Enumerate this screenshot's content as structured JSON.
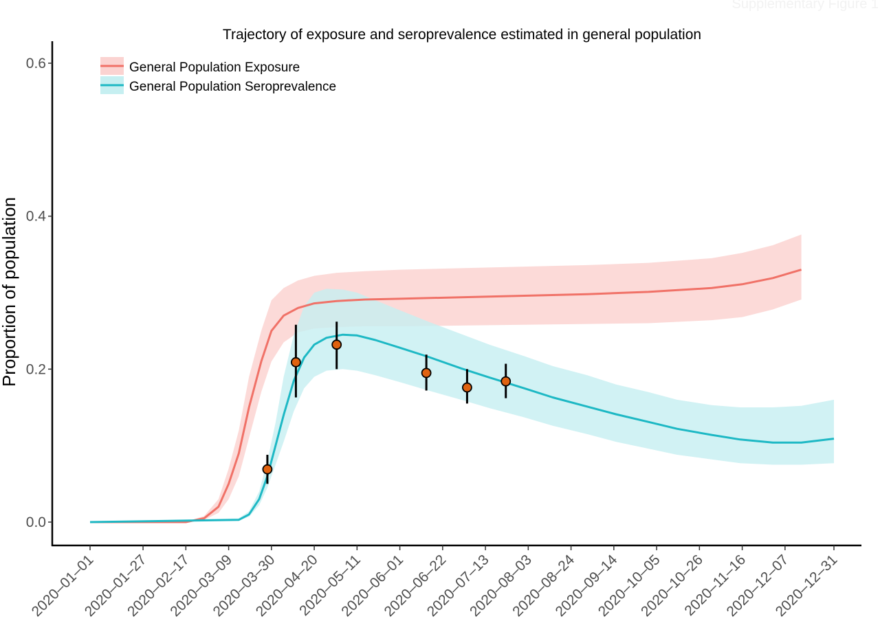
{
  "corner_label": "Supplementary Figure 1",
  "chart_data": {
    "type": "line",
    "title": "Trajectory of exposure and seroprevalence estimated in general population",
    "xlabel": "",
    "ylabel": "Proportion of population",
    "x_range": [
      "2020-01-01",
      "2020-12-31"
    ],
    "ylim": [
      -0.03,
      0.62
    ],
    "y_ticks": [
      0.0,
      0.2,
      0.4,
      0.6
    ],
    "y_tick_labels": [
      "0.0",
      "0.2",
      "0.4",
      "0.6"
    ],
    "x_ticks": [
      "2020-01-01",
      "2020-01-27",
      "2020-02-17",
      "2020-03-09",
      "2020-03-30",
      "2020-04-20",
      "2020-05-11",
      "2020-06-01",
      "2020-06-22",
      "2020-07-13",
      "2020-08-03",
      "2020-08-24",
      "2020-09-14",
      "2020-10-05",
      "2020-10-26",
      "2020-11-16",
      "2020-12-07",
      "2020-12-31"
    ],
    "x_tick_labels": [
      "2020–01–01",
      "2020–01–27",
      "2020–02–17",
      "2020–03–09",
      "2020–03–30",
      "2020–04–20",
      "2020–05–11",
      "2020–06–01",
      "2020–06–22",
      "2020–07–13",
      "2020–08–03",
      "2020–08–24",
      "2020–09–14",
      "2020–10–05",
      "2020–10–26",
      "2020–11–16",
      "2020–12–07",
      "2020–12–31"
    ],
    "grid": false,
    "legend_position": "top-left",
    "series": [
      {
        "name": "General Population Exposure",
        "color": "#f07167",
        "band_color": "#fbd3d1",
        "x": [
          "2020-01-01",
          "2020-02-17",
          "2020-02-26",
          "2020-03-04",
          "2020-03-09",
          "2020-03-14",
          "2020-03-19",
          "2020-03-25",
          "2020-03-30",
          "2020-04-05",
          "2020-04-12",
          "2020-04-20",
          "2020-05-01",
          "2020-05-15",
          "2020-06-01",
          "2020-07-01",
          "2020-08-01",
          "2020-09-01",
          "2020-10-01",
          "2020-11-01",
          "2020-11-16",
          "2020-12-01",
          "2020-12-15"
        ],
        "y": [
          0.0,
          0.0,
          0.005,
          0.02,
          0.05,
          0.09,
          0.15,
          0.21,
          0.25,
          0.27,
          0.28,
          0.286,
          0.289,
          0.291,
          0.292,
          0.294,
          0.296,
          0.298,
          0.301,
          0.306,
          0.311,
          0.319,
          0.33
        ],
        "lower": [
          0.0,
          0.0,
          0.003,
          0.012,
          0.03,
          0.06,
          0.11,
          0.17,
          0.21,
          0.235,
          0.248,
          0.253,
          0.255,
          0.256,
          0.256,
          0.257,
          0.258,
          0.259,
          0.26,
          0.264,
          0.268,
          0.278,
          0.291
        ],
        "upper": [
          0.0,
          0.0,
          0.008,
          0.03,
          0.07,
          0.12,
          0.19,
          0.25,
          0.29,
          0.306,
          0.316,
          0.322,
          0.326,
          0.328,
          0.33,
          0.332,
          0.334,
          0.336,
          0.339,
          0.345,
          0.352,
          0.362,
          0.376
        ]
      },
      {
        "name": "General Population Seroprevalence",
        "color": "#1db8c4",
        "band_color": "#c6eff1",
        "x": [
          "2020-01-01",
          "2020-03-14",
          "2020-03-19",
          "2020-03-24",
          "2020-03-28",
          "2020-04-01",
          "2020-04-05",
          "2020-04-10",
          "2020-04-15",
          "2020-04-20",
          "2020-04-26",
          "2020-05-04",
          "2020-05-11",
          "2020-05-20",
          "2020-06-01",
          "2020-06-15",
          "2020-07-01",
          "2020-07-15",
          "2020-08-01",
          "2020-08-15",
          "2020-09-01",
          "2020-09-15",
          "2020-10-01",
          "2020-10-15",
          "2020-11-01",
          "2020-11-15",
          "2020-12-01",
          "2020-12-15",
          "2020-12-31"
        ],
        "y": [
          0.0,
          0.003,
          0.01,
          0.03,
          0.06,
          0.1,
          0.14,
          0.185,
          0.215,
          0.232,
          0.241,
          0.245,
          0.244,
          0.238,
          0.228,
          0.216,
          0.201,
          0.189,
          0.175,
          0.163,
          0.151,
          0.141,
          0.131,
          0.122,
          0.114,
          0.108,
          0.104,
          0.104,
          0.109
        ],
        "lower": [
          0.0,
          0.002,
          0.007,
          0.022,
          0.045,
          0.075,
          0.105,
          0.145,
          0.175,
          0.19,
          0.198,
          0.2,
          0.198,
          0.192,
          0.183,
          0.172,
          0.16,
          0.149,
          0.137,
          0.126,
          0.115,
          0.105,
          0.096,
          0.088,
          0.082,
          0.077,
          0.075,
          0.075,
          0.077
        ],
        "upper": [
          0.0,
          0.005,
          0.014,
          0.04,
          0.08,
          0.13,
          0.19,
          0.245,
          0.282,
          0.3,
          0.305,
          0.304,
          0.3,
          0.29,
          0.277,
          0.262,
          0.246,
          0.232,
          0.217,
          0.204,
          0.192,
          0.18,
          0.17,
          0.16,
          0.153,
          0.15,
          0.15,
          0.152,
          0.16
        ]
      }
    ],
    "observations": {
      "color": "#e0620f",
      "points": [
        {
          "x": "2020-03-28",
          "y": 0.069,
          "lower": 0.05,
          "upper": 0.088
        },
        {
          "x": "2020-04-11",
          "y": 0.209,
          "lower": 0.163,
          "upper": 0.258
        },
        {
          "x": "2020-05-01",
          "y": 0.232,
          "lower": 0.2,
          "upper": 0.262
        },
        {
          "x": "2020-06-14",
          "y": 0.195,
          "lower": 0.172,
          "upper": 0.219
        },
        {
          "x": "2020-07-04",
          "y": 0.176,
          "lower": 0.155,
          "upper": 0.2
        },
        {
          "x": "2020-07-23",
          "y": 0.184,
          "lower": 0.162,
          "upper": 0.207
        }
      ]
    }
  }
}
